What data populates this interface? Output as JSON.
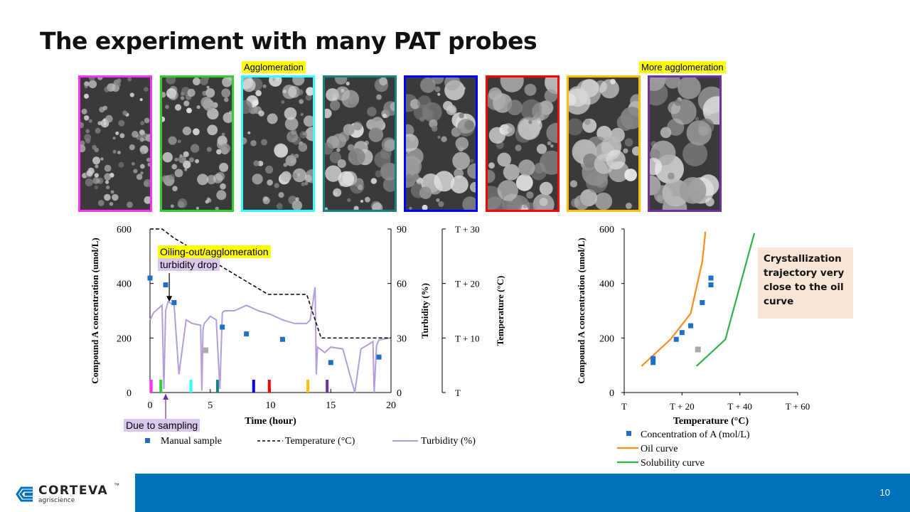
{
  "slide": {
    "title": "The experiment with many PAT probes",
    "page_number": "10"
  },
  "image_labels": {
    "agglomeration": "Agglomeration",
    "more_agglomeration": "More agglomeration"
  },
  "photos": [
    {
      "border": "#ff33ff",
      "name": "photo-1"
    },
    {
      "border": "#33cc33",
      "name": "photo-2"
    },
    {
      "border": "#33ffff",
      "name": "photo-3"
    },
    {
      "border": "#1a8080",
      "name": "photo-4"
    },
    {
      "border": "#0000ff",
      "name": "photo-5"
    },
    {
      "border": "#ff0000",
      "name": "photo-6"
    },
    {
      "border": "#ffc000",
      "name": "photo-7"
    },
    {
      "border": "#7030a0",
      "name": "photo-8"
    }
  ],
  "annotations": {
    "oiling_out": "Oiling-out/agglomeration",
    "turbidity_drop": "turbidity drop",
    "due_to_sampling": "Due to sampling"
  },
  "callout": {
    "text": "Crystallization trajectory very close to the oil curve"
  },
  "footer": {
    "brand": "CORTEVA",
    "sub": "agriscience",
    "trademark": "™"
  },
  "chart_data": [
    {
      "type": "line",
      "xlabel": "Time (hour)",
      "ylabel_left": "Compound A concentration (umol/L)",
      "ylabel_right": "Turbidity (%)",
      "ylabel_far_right": "Temperature (°C)",
      "xlim": [
        0,
        20
      ],
      "ylim_left": [
        0,
        600
      ],
      "ylim_right": [
        0,
        90
      ],
      "x_ticks": [
        "0",
        "5",
        "10",
        "15",
        "20"
      ],
      "y_ticks_left": [
        "0",
        "200",
        "400",
        "600"
      ],
      "y_ticks_right": [
        "0",
        "30",
        "60",
        "90"
      ],
      "temp_ticks": [
        "T",
        "T + 10",
        "T + 20",
        "T + 30"
      ],
      "legend": [
        {
          "label": "Manual sample",
          "color": "#1f6fc6",
          "marker": "square"
        },
        {
          "label": "Temperature (°C)",
          "color": "#000000",
          "marker": "dashed"
        },
        {
          "label": "Turbidity (%)",
          "color": "#b39ddb",
          "marker": "line"
        }
      ],
      "series": [
        {
          "name": "Manual sample",
          "color": "#1f6fc6",
          "x": [
            0,
            1.3,
            2,
            6,
            8,
            11,
            15,
            19
          ],
          "y": [
            420,
            395,
            330,
            240,
            215,
            195,
            110,
            130
          ]
        },
        {
          "name": "Gray sample",
          "color": "#aaaaaa",
          "x": [
            4.6
          ],
          "y": [
            155
          ]
        },
        {
          "name": "Temperature (°C)",
          "color": "#000000",
          "x": [
            0,
            1,
            2,
            9.8,
            13,
            14.2,
            20
          ],
          "y": [
            90,
            90,
            85,
            54,
            54,
            30,
            30
          ]
        },
        {
          "name": "Turbidity (%)",
          "color": "#b39ddb",
          "x": [
            0,
            0.3,
            1,
            1.15,
            1.3,
            1.5,
            2,
            2.4,
            3,
            3.5,
            4.2,
            4.3,
            4.4,
            4.5,
            5,
            5.5,
            5.8,
            6,
            6.2,
            7,
            8,
            9,
            10,
            11,
            12,
            13,
            13.3,
            13.7,
            13.8,
            13.9,
            14.5,
            15,
            16,
            17,
            17.5,
            18,
            18.5,
            18.6,
            18.8,
            19,
            20
          ],
          "y": [
            40,
            44,
            48,
            2,
            45,
            50,
            48,
            10,
            40,
            38,
            37,
            1,
            35,
            38,
            42,
            40,
            2,
            44,
            45,
            45,
            48,
            45,
            43,
            40,
            38,
            38,
            40,
            58,
            10,
            25,
            22,
            25,
            24,
            0,
            24,
            26,
            28,
            0,
            26,
            29,
            30
          ]
        }
      ],
      "sample_markers": [
        {
          "x": 0.1,
          "color": "#ff33ff"
        },
        {
          "x": 0.9,
          "color": "#33cc33"
        },
        {
          "x": 3.4,
          "color": "#33ffff"
        },
        {
          "x": 5.6,
          "color": "#1a8080"
        },
        {
          "x": 8.6,
          "color": "#0000ff"
        },
        {
          "x": 9.9,
          "color": "#ff0000"
        },
        {
          "x": 13.1,
          "color": "#ffc000"
        },
        {
          "x": 14.7,
          "color": "#7030a0"
        }
      ]
    },
    {
      "type": "scatter",
      "xlabel": "Temperature (°C)",
      "ylabel": "Compound A concentration (umol/L)",
      "ylim": [
        0,
        600
      ],
      "y_ticks": [
        "0",
        "200",
        "400",
        "600"
      ],
      "x_ticks": [
        "T",
        "T + 20",
        "T + 40",
        "T + 60"
      ],
      "legend": [
        {
          "label": "Concentration of A (mol/L)",
          "color": "#1f6fc6",
          "marker": "square"
        },
        {
          "label": "Oil curve",
          "color": "#ff8c1a",
          "marker": "line"
        },
        {
          "label": "Solubility curve",
          "color": "#2db34a",
          "marker": "line"
        }
      ],
      "series": [
        {
          "name": "Concentration of A (mol/L)",
          "color": "#1f6fc6",
          "x": [
            10,
            10,
            18,
            20,
            23,
            27,
            30,
            30
          ],
          "y": [
            110,
            125,
            195,
            220,
            245,
            330,
            395,
            420
          ]
        },
        {
          "name": "Gray sample",
          "color": "#aaaaaa",
          "x": [
            25.5
          ],
          "y": [
            158
          ]
        },
        {
          "name": "Oil curve",
          "color": "#ff8c1a",
          "x": [
            6,
            16,
            23,
            27,
            28,
            28
          ],
          "y": [
            97,
            195,
            290,
            480,
            580,
            590
          ]
        },
        {
          "name": "Solubility curve",
          "color": "#2db34a",
          "x": [
            25,
            35,
            45
          ],
          "y": [
            97,
            195,
            585
          ]
        }
      ]
    }
  ]
}
